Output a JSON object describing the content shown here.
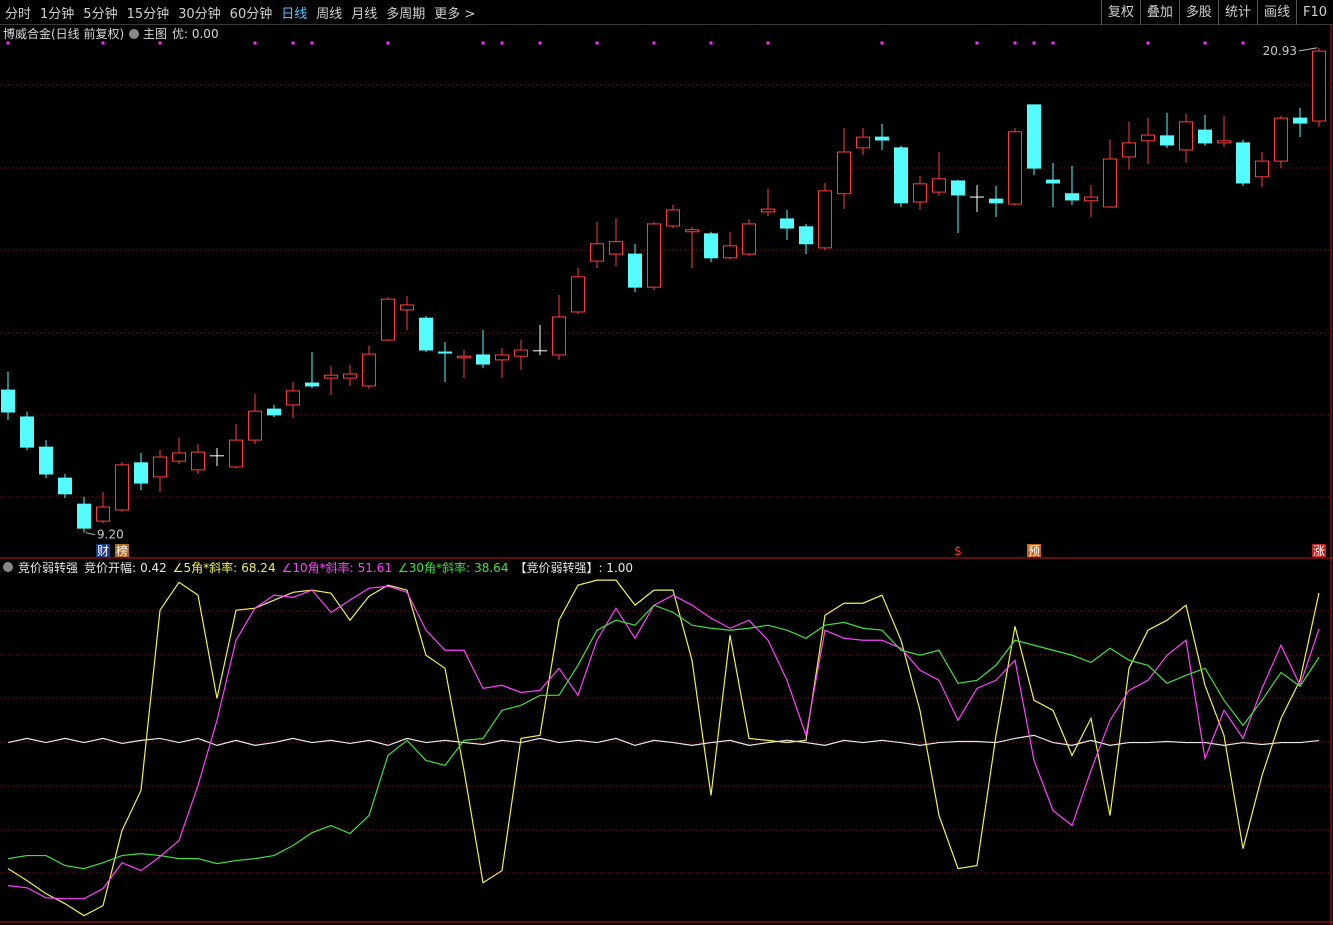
{
  "toolbar": {
    "periods": [
      "分时",
      "1分钟",
      "5分钟",
      "15分钟",
      "30分钟",
      "60分钟",
      "日线",
      "周线",
      "月线",
      "多周期",
      "更多 >"
    ],
    "active": 6,
    "buttons": [
      "复权",
      "叠加",
      "多股",
      "统计",
      "画线",
      "F10"
    ]
  },
  "main_header": {
    "title": "博威合金(日线 前复权)",
    "menu": "主图",
    "value_label": "优: 0.00"
  },
  "event_tags": [
    {
      "label": "财",
      "index": 5,
      "color": "#1a3a8a",
      "text_color": "#ffffff"
    },
    {
      "label": "榜",
      "index": 6,
      "color": "#b06a1e",
      "text_color": "#ffffff"
    },
    {
      "label": "$",
      "index": 50,
      "color": "#000000",
      "text_color": "#ff3030"
    },
    {
      "label": "预",
      "index": 54,
      "color": "#c86414",
      "text_color": "#ffffff"
    },
    {
      "label": "涨",
      "index": 69,
      "color": "#c81e1e",
      "text_color": "#ffffff"
    }
  ],
  "chart_data": [
    {
      "type": "candlestick",
      "up_color": "#ff3c3c",
      "down_color": "#54fcfc",
      "signal_color": "#ff2cff",
      "ylim": [
        8.66,
        21.41
      ],
      "open": [
        12.65,
        12.0,
        11.27,
        10.52,
        9.89,
        9.48,
        9.75,
        10.89,
        10.55,
        10.93,
        10.72,
        11.06,
        10.79,
        11.44,
        12.19,
        12.29,
        12.82,
        12.94,
        12.94,
        12.75,
        13.86,
        14.59,
        14.39,
        13.57,
        13.43,
        13.5,
        13.38,
        13.47,
        13.6,
        13.5,
        14.54,
        15.77,
        15.94,
        15.94,
        15.14,
        16.62,
        16.48,
        16.43,
        15.85,
        15.94,
        16.96,
        16.79,
        16.6,
        16.09,
        17.4,
        18.51,
        18.77,
        18.51,
        17.2,
        17.44,
        17.71,
        17.32,
        17.27,
        17.15,
        19.55,
        17.73,
        17.4,
        17.23,
        17.08,
        18.29,
        18.68,
        18.8,
        18.46,
        18.94,
        18.63,
        18.63,
        17.81,
        18.19,
        19.23,
        19.16
      ],
      "high": [
        13.09,
        12.12,
        11.44,
        10.62,
        10.06,
        10.18,
        10.91,
        11.13,
        11.2,
        11.51,
        11.34,
        11.25,
        11.83,
        12.56,
        12.29,
        12.85,
        13.57,
        13.23,
        13.26,
        13.72,
        14.9,
        14.93,
        14.44,
        13.81,
        13.62,
        14.1,
        13.67,
        13.86,
        14.22,
        14.95,
        15.6,
        16.72,
        16.81,
        16.19,
        16.72,
        17.13,
        16.6,
        16.48,
        16.48,
        16.79,
        17.52,
        17.01,
        16.67,
        17.66,
        18.99,
        18.99,
        19.09,
        18.56,
        17.83,
        18.41,
        17.73,
        17.61,
        17.59,
        18.99,
        19.55,
        18.15,
        18.07,
        17.61,
        18.7,
        19.14,
        19.23,
        19.36,
        19.33,
        19.31,
        19.28,
        18.7,
        18.41,
        19.28,
        19.48,
        20.93
      ],
      "low": [
        11.93,
        11.2,
        10.52,
        10.04,
        9.2,
        9.43,
        9.7,
        10.23,
        10.18,
        10.86,
        10.62,
        10.81,
        10.76,
        11.34,
        12.0,
        11.97,
        12.7,
        12.53,
        12.75,
        12.68,
        13.84,
        14.1,
        13.57,
        12.85,
        12.94,
        13.18,
        12.94,
        13.14,
        13.5,
        13.38,
        14.49,
        15.6,
        15.65,
        15.02,
        15.07,
        16.57,
        15.6,
        15.75,
        15.82,
        15.89,
        16.86,
        16.28,
        15.94,
        16.04,
        17.03,
        18.34,
        18.46,
        17.08,
        17.01,
        17.35,
        16.45,
        16.96,
        16.84,
        17.11,
        17.85,
        17.08,
        17.13,
        16.84,
        17.06,
        17.98,
        18.12,
        18.51,
        18.15,
        18.56,
        18.53,
        17.59,
        17.56,
        18.02,
        18.77,
        19.02
      ],
      "close": [
        12.12,
        11.27,
        10.62,
        10.14,
        9.31,
        9.82,
        10.84,
        10.4,
        11.03,
        11.13,
        11.15,
        11.06,
        11.44,
        12.14,
        12.05,
        12.63,
        12.75,
        13.01,
        13.04,
        13.52,
        14.85,
        14.71,
        13.62,
        13.55,
        13.47,
        13.28,
        13.5,
        13.62,
        13.6,
        14.42,
        15.39,
        16.19,
        16.24,
        15.14,
        16.67,
        17.01,
        16.53,
        15.85,
        16.14,
        16.67,
        17.03,
        16.57,
        16.19,
        17.47,
        18.41,
        18.77,
        18.7,
        17.18,
        17.64,
        17.76,
        17.37,
        17.32,
        17.18,
        18.9,
        18.02,
        17.66,
        17.25,
        17.32,
        18.24,
        18.63,
        18.82,
        18.58,
        19.14,
        18.63,
        18.68,
        17.66,
        18.19,
        19.23,
        19.11,
        20.85
      ],
      "signals": [
        0,
        5,
        8,
        13,
        15,
        16,
        20,
        25,
        26,
        28,
        31,
        34,
        37,
        40,
        46,
        51,
        53,
        54,
        55,
        60,
        63,
        65
      ],
      "annotations": [
        {
          "value": 20.93,
          "label": "20.93",
          "index": 69
        },
        {
          "value": 9.2,
          "label": "9.20",
          "index": 4
        }
      ]
    },
    {
      "type": "line",
      "title": "竞价弱转强",
      "ylim": [
        -82,
        76
      ],
      "extra_label": "【竞价弱转强】: 1.00",
      "series": [
        {
          "name": "竞价开幅:",
          "color": "#e8e8e8",
          "values": [
            -0.5,
            1.4,
            -0.5,
            1.4,
            -0.5,
            1.4,
            -0.9,
            0.5,
            1.4,
            -0.5,
            1.4,
            -1.8,
            0.5,
            -1.8,
            -0.5,
            1.4,
            -0.5,
            0.5,
            -0.9,
            0.5,
            -1.8,
            1.4,
            -0.5,
            0.5,
            -0.5,
            -1.4,
            0.5,
            -0.5,
            1.4,
            -0.5,
            0.5,
            -0.5,
            1.4,
            -1.8,
            0.5,
            -0.5,
            -1.8,
            -0.5,
            0.5,
            -1.8,
            -0.5,
            0.5,
            -0.5,
            -1.8,
            0.5,
            -0.5,
            0.5,
            -0.5,
            -1.8,
            -0.5,
            0,
            0,
            -0.5,
            1.4,
            2.8,
            -0.5,
            -1.8,
            0.5,
            -1.8,
            -0.5,
            -0.5,
            0,
            -0.5,
            -0.5,
            -1.8,
            -0.5,
            -1.4,
            -0.5,
            -0.5,
            0.42
          ]
        },
        {
          "name": "∠5角*斜率:",
          "color": "#f0f050",
          "values": [
            -58.4,
            -63.9,
            -69.9,
            -74.5,
            -80.0,
            -75.4,
            -40.9,
            -22.5,
            60.3,
            73.1,
            67.2,
            19.8,
            60.3,
            61.2,
            64.9,
            68.5,
            69.5,
            68.1,
            55.7,
            66.7,
            71.8,
            69.5,
            39.6,
            33.6,
            -13.3,
            -64.9,
            -59.3,
            1.4,
            2.8,
            55.7,
            71.8,
            74.1,
            74.1,
            62.6,
            69.5,
            69.5,
            37.3,
            -24.8,
            48.8,
            1.4,
            0.5,
            -0.5,
            0.5,
            58.0,
            63.5,
            63.5,
            67.2,
            46.5,
            14.3,
            -34.0,
            -58.4,
            -57.0,
            2.8,
            52.9,
            18.9,
            14.3,
            -6.4,
            10.6,
            -34.0,
            33.6,
            51.1,
            55.7,
            62.6,
            25.8,
            2.8,
            -49.2,
            -15.6,
            10.6,
            28.1,
            68.24
          ]
        },
        {
          "name": "∠10角*斜率:",
          "color": "#ff40ff",
          "values": [
            -66.2,
            -67.2,
            -71.8,
            -72.2,
            -72.2,
            -67.6,
            -55.7,
            -59.3,
            -52.9,
            -45.5,
            -20.2,
            9.7,
            46.5,
            61.2,
            67.2,
            66.2,
            69.5,
            59.3,
            64.9,
            70.4,
            71.3,
            68.5,
            51.1,
            41.9,
            41.9,
            24.4,
            25.8,
            22.5,
            23.5,
            33.6,
            21.2,
            46.5,
            61.2,
            47.4,
            62.6,
            67.2,
            62.6,
            56.6,
            52.0,
            55.7,
            46.5,
            28.1,
            2.8,
            51.1,
            47.4,
            46.5,
            46.5,
            42.8,
            32.7,
            28.1,
            9.7,
            24.4,
            28.1,
            37.3,
            -8.7,
            -31.7,
            -38.6,
            -13.3,
            9.7,
            23.5,
            28.1,
            39.6,
            46.5,
            -7.8,
            14.3,
            1.4,
            24.4,
            44.2,
            25.8,
            51.61
          ]
        },
        {
          "name": "∠30角*斜率:",
          "color": "#40e040",
          "values": [
            -53.8,
            -52.4,
            -52.4,
            -57.0,
            -58.4,
            -55.7,
            -52.4,
            -51.5,
            -52.4,
            -53.8,
            -53.8,
            -56.1,
            -54.7,
            -53.8,
            -52.4,
            -47.8,
            -41.9,
            -38.6,
            -42.3,
            -34.0,
            -6.4,
            0.5,
            -8.7,
            -11.0,
            0.5,
            1.4,
            14.3,
            16.6,
            21.2,
            21.2,
            35.0,
            51.1,
            55.7,
            53.4,
            62.6,
            59.3,
            53.4,
            52.0,
            51.1,
            52.0,
            53.4,
            51.1,
            47.4,
            53.4,
            54.7,
            52.0,
            51.1,
            41.9,
            39.6,
            41.9,
            26.7,
            28.1,
            35.0,
            46.5,
            44.2,
            41.9,
            39.6,
            36.3,
            42.8,
            37.3,
            35.0,
            26.7,
            30.4,
            33.6,
            18.9,
            7.4,
            18.9,
            31.7,
            25.3,
            38.64
          ]
        }
      ]
    }
  ]
}
